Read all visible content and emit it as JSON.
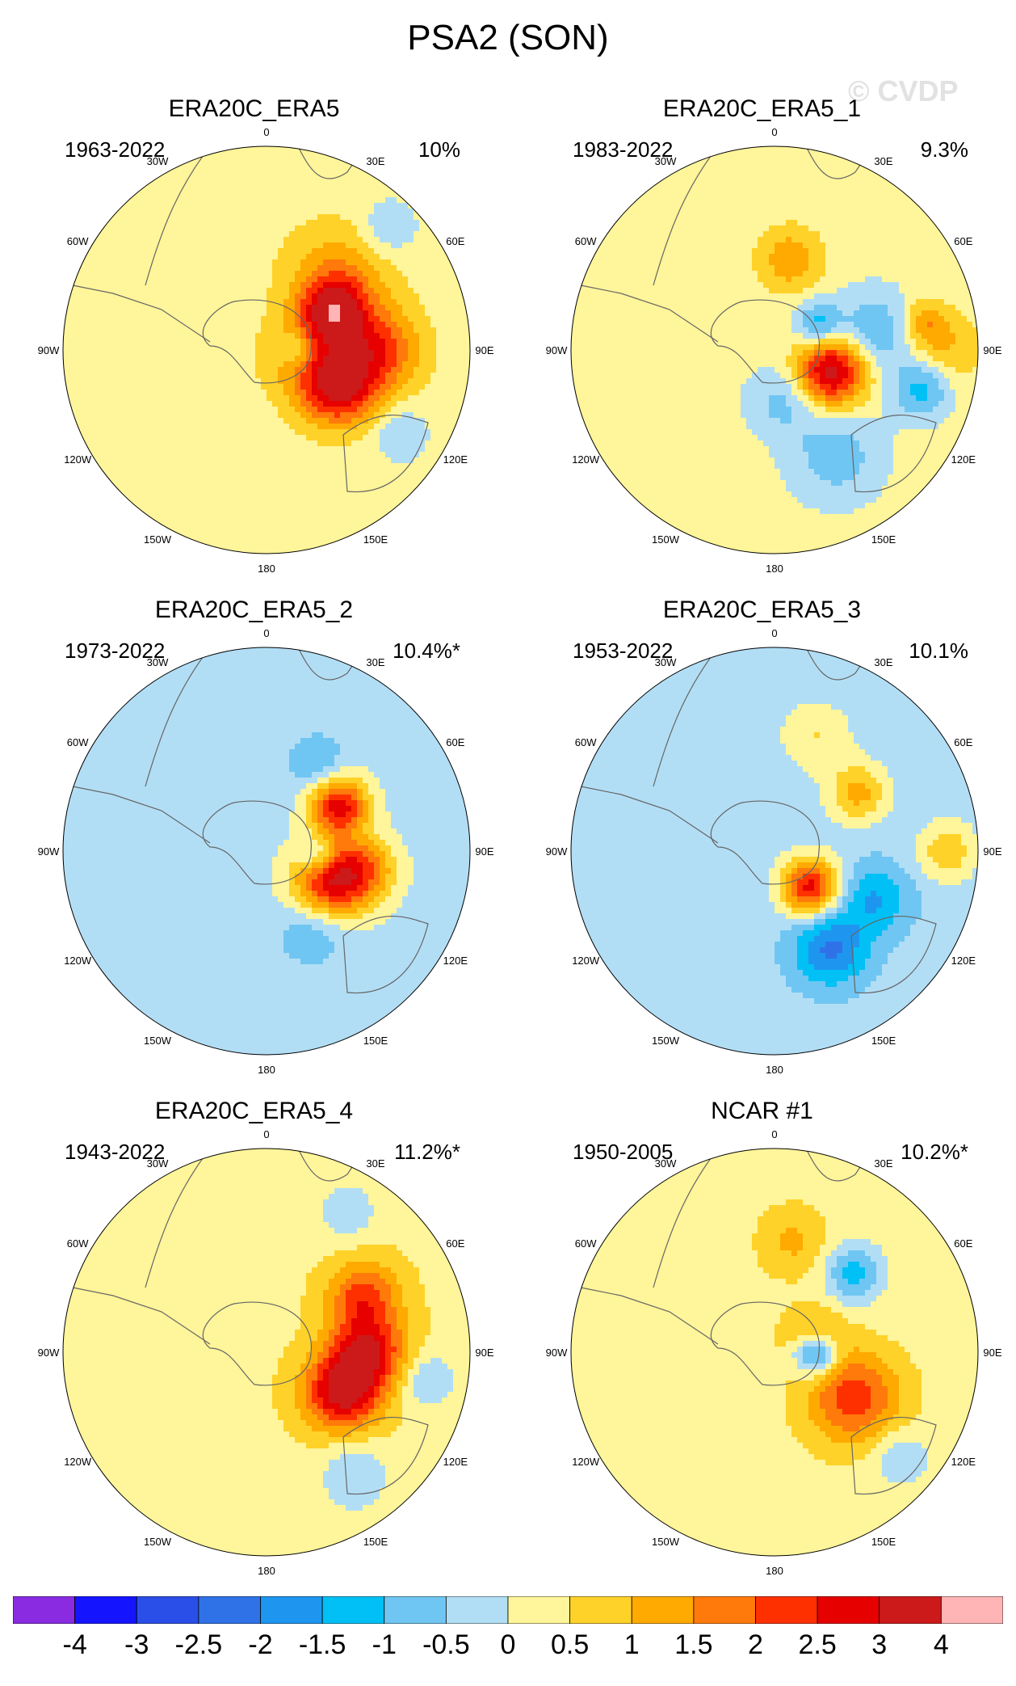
{
  "title": "PSA2 (SON)",
  "watermark": "© CVDP",
  "longitude_labels": [
    "0",
    "30E",
    "60E",
    "90E",
    "120E",
    "150E",
    "180",
    "150W",
    "120W",
    "90W",
    "60W",
    "30W"
  ],
  "panels": [
    {
      "title": "ERA20C_ERA5",
      "years": "1963-2022",
      "percent": "10%"
    },
    {
      "title": "ERA20C_ERA5_1",
      "years": "1983-2022",
      "percent": "9.3%"
    },
    {
      "title": "ERA20C_ERA5_2",
      "years": "1973-2022",
      "percent": "10.4%*"
    },
    {
      "title": "ERA20C_ERA5_3",
      "years": "1953-2022",
      "percent": "10.1%"
    },
    {
      "title": "ERA20C_ERA5_4",
      "years": "1943-2022",
      "percent": "11.2%*"
    },
    {
      "title": "NCAR #1",
      "years": "1950-2005",
      "percent": "10.2%*"
    }
  ],
  "colorbar": {
    "colors": [
      "#8a2be2",
      "#1414ff",
      "#2a4fe8",
      "#2f72e8",
      "#1e96f0",
      "#00c0f5",
      "#70c6f2",
      "#b2def5",
      "#fff59a",
      "#ffd22a",
      "#ffaa00",
      "#ff7a0a",
      "#ff3000",
      "#e60000",
      "#cc1a1a",
      "#ffb5b5"
    ],
    "labels": [
      "-4",
      "-3",
      "-2.5",
      "-2",
      "-1.5",
      "-1",
      "-0.5",
      "0",
      "0.5",
      "1",
      "1.5",
      "2",
      "2.5",
      "3",
      "4"
    ]
  },
  "chart_data": {
    "type": "heatmap",
    "title": "PSA2 (SON)",
    "projection": "south polar stereographic",
    "units_levels": [
      -4,
      -3,
      -2.5,
      -2,
      -1.5,
      -1,
      -0.5,
      0,
      0.5,
      1,
      1.5,
      2,
      2.5,
      3,
      4
    ],
    "features": [
      {
        "panel": 0,
        "background": 0.25,
        "blobs": [
          {
            "lon": 60,
            "r": 0.38,
            "v": 2.6,
            "s": 0.11
          },
          {
            "lon": 90,
            "r": 0.55,
            "v": 2.0,
            "s": 0.14
          },
          {
            "lon": 45,
            "r": 0.5,
            "v": 1.2,
            "s": 0.18
          },
          {
            "lon": 118,
            "r": 0.4,
            "v": 2.7,
            "s": 0.13
          },
          {
            "lon": 100,
            "r": 0.2,
            "v": 1.0,
            "s": 0.15
          },
          {
            "lon": 122,
            "r": 0.78,
            "v": -0.8,
            "s": 0.09
          },
          {
            "lon": 45,
            "r": 0.85,
            "v": -0.8,
            "s": 0.1
          },
          {
            "lon": 88,
            "r": 0.15,
            "v": -0.9,
            "s": 0.06
          }
        ]
      },
      {
        "panel": 1,
        "background": 0.2,
        "blobs": [
          {
            "lon": 10,
            "r": 0.45,
            "v": 1.2,
            "s": 0.11
          },
          {
            "lon": 110,
            "r": 0.3,
            "v": 3.2,
            "s": 0.12
          },
          {
            "lon": 80,
            "r": 0.5,
            "v": -1.2,
            "s": 0.14
          },
          {
            "lon": 60,
            "r": 0.25,
            "v": -1.5,
            "s": 0.08
          },
          {
            "lon": 105,
            "r": 0.75,
            "v": -1.4,
            "s": 0.1
          },
          {
            "lon": 150,
            "r": 0.6,
            "v": -1.0,
            "s": 0.16
          },
          {
            "lon": 170,
            "r": 0.25,
            "v": -0.9,
            "s": 0.12
          },
          {
            "lon": 80,
            "r": 0.75,
            "v": 1.2,
            "s": 0.08
          },
          {
            "lon": 90,
            "r": 0.85,
            "v": 0.8,
            "s": 0.12
          }
        ]
      },
      {
        "panel": 2,
        "background": -0.2,
        "blobs": [
          {
            "lon": 58,
            "r": 0.42,
            "v": 3.0,
            "s": 0.1
          },
          {
            "lon": 100,
            "r": 0.5,
            "v": 1.5,
            "s": 0.11
          },
          {
            "lon": 115,
            "r": 0.35,
            "v": 3.0,
            "s": 0.13
          },
          {
            "lon": 150,
            "r": 0.45,
            "v": -0.8,
            "s": 0.12
          },
          {
            "lon": 95,
            "r": 0.25,
            "v": -1.2,
            "s": 0.06
          },
          {
            "lon": 30,
            "r": 0.5,
            "v": -0.8,
            "s": 0.1
          }
        ]
      },
      {
        "panel": 3,
        "background": -0.3,
        "blobs": [
          {
            "lon": 55,
            "r": 0.5,
            "v": 1.5,
            "s": 0.1
          },
          {
            "lon": 90,
            "r": 0.85,
            "v": 1.2,
            "s": 0.1
          },
          {
            "lon": 135,
            "r": 0.25,
            "v": 3.0,
            "s": 0.1
          },
          {
            "lon": 150,
            "r": 0.55,
            "v": -1.8,
            "s": 0.13
          },
          {
            "lon": 115,
            "r": 0.55,
            "v": -1.2,
            "s": 0.12
          },
          {
            "lon": 20,
            "r": 0.6,
            "v": 0.8,
            "s": 0.12
          }
        ]
      },
      {
        "panel": 4,
        "background": 0.4,
        "blobs": [
          {
            "lon": 60,
            "r": 0.55,
            "v": 1.8,
            "s": 0.12
          },
          {
            "lon": 90,
            "r": 0.5,
            "v": 2.4,
            "s": 0.13
          },
          {
            "lon": 118,
            "r": 0.42,
            "v": 2.8,
            "s": 0.13
          },
          {
            "lon": 145,
            "r": 0.75,
            "v": -0.9,
            "s": 0.12
          },
          {
            "lon": 100,
            "r": 0.8,
            "v": -0.9,
            "s": 0.1
          },
          {
            "lon": 30,
            "r": 0.8,
            "v": -0.8,
            "s": 0.1
          }
        ]
      },
      {
        "panel": 5,
        "background": 0.3,
        "blobs": [
          {
            "lon": 45,
            "r": 0.55,
            "v": -1.5,
            "s": 0.1
          },
          {
            "lon": 90,
            "r": 0.2,
            "v": -3.2,
            "s": 0.08
          },
          {
            "lon": 120,
            "r": 0.45,
            "v": 2.0,
            "s": 0.16
          },
          {
            "lon": 75,
            "r": 0.2,
            "v": 1.8,
            "s": 0.1
          },
          {
            "lon": 130,
            "r": 0.8,
            "v": -0.8,
            "s": 0.1
          },
          {
            "lon": 10,
            "r": 0.55,
            "v": 0.8,
            "s": 0.12
          }
        ]
      }
    ]
  }
}
